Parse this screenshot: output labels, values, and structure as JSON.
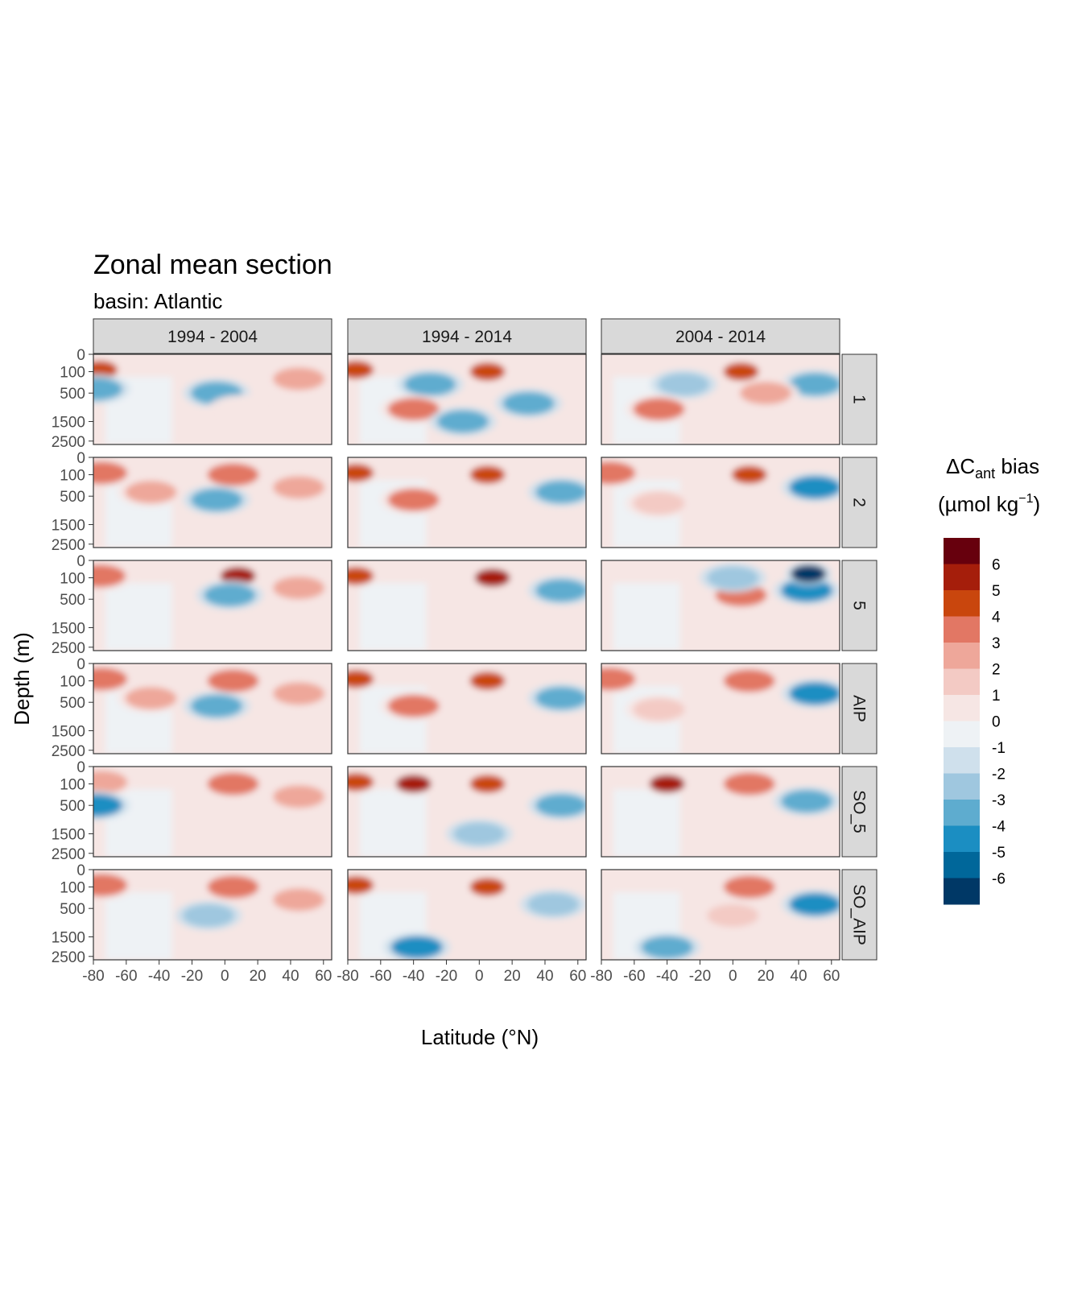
{
  "chart_data": {
    "type": "heatmap",
    "title": "Zonal mean section",
    "subtitle": "basin: Atlantic",
    "xlabel": "Latitude (°N)",
    "ylabel": "Depth (m)",
    "xlim": [
      -80,
      65
    ],
    "x_ticks": [
      "-80",
      "-60",
      "-40",
      "-20",
      "0",
      "20",
      "40",
      "60"
    ],
    "x_tick_values": [
      -80,
      -60,
      -40,
      -20,
      0,
      20,
      40,
      60
    ],
    "y_ticks": [
      "0",
      "100",
      "500",
      "1500",
      "2500"
    ],
    "y_tick_values": [
      0,
      100,
      500,
      1500,
      2500
    ],
    "y_reversed": true,
    "columns": [
      "1994 - 2004",
      "1994 - 2014",
      "2004 - 2014"
    ],
    "rows": [
      "1",
      "2",
      "5",
      "AIP",
      "SO_5",
      "SO_AIP"
    ],
    "legend": {
      "title_prefix": "ΔC",
      "title_sub": "ant",
      "title_suffix": " bias",
      "unit_prefix": "(µmol kg",
      "unit_sup": "−1",
      "unit_suffix": ")",
      "labels": [
        "6",
        "5",
        "4",
        "3",
        "2",
        "1",
        "0",
        "-1",
        "-2",
        "-3",
        "-4",
        "-5",
        "-6"
      ],
      "colors": [
        "#67000d",
        "#a51e0b",
        "#c9460d",
        "#e27764",
        "#eea79a",
        "#f3cac4",
        "#f6e6e4",
        "#eef2f5",
        "#cfe0ec",
        "#9fc7df",
        "#5eaccf",
        "#1b8ec2",
        "#00679a",
        "#003866"
      ]
    },
    "panels": [
      {
        "column": "1994 - 2004",
        "row": "1",
        "features": [
          {
            "lat": -76,
            "depth": 80,
            "value": 5
          },
          {
            "lat": -5,
            "depth": 500,
            "value": -3
          },
          {
            "lat": 45,
            "depth": 200,
            "value": 3
          },
          {
            "lat": -78,
            "depth": 400,
            "value": -3
          },
          {
            "lat": 10,
            "depth": 1000,
            "value": 1
          }
        ]
      },
      {
        "column": "1994 - 2014",
        "row": "1",
        "features": [
          {
            "lat": -75,
            "depth": 80,
            "value": 5
          },
          {
            "lat": 5,
            "depth": 100,
            "value": 5
          },
          {
            "lat": -30,
            "depth": 300,
            "value": -3
          },
          {
            "lat": -40,
            "depth": 1000,
            "value": 4
          },
          {
            "lat": 30,
            "depth": 800,
            "value": -3
          },
          {
            "lat": -10,
            "depth": 1500,
            "value": -3
          }
        ]
      },
      {
        "column": "2004 - 2014",
        "row": "1",
        "features": [
          {
            "lat": 5,
            "depth": 100,
            "value": 5
          },
          {
            "lat": -30,
            "depth": 300,
            "value": -2
          },
          {
            "lat": -45,
            "depth": 1000,
            "value": 4
          },
          {
            "lat": 50,
            "depth": 300,
            "value": -3
          },
          {
            "lat": 20,
            "depth": 500,
            "value": 3
          }
        ]
      },
      {
        "column": "1994 - 2004",
        "row": "2",
        "features": [
          {
            "lat": -75,
            "depth": 80,
            "value": 4
          },
          {
            "lat": 5,
            "depth": 100,
            "value": 4
          },
          {
            "lat": -45,
            "depth": 400,
            "value": 3
          },
          {
            "lat": -5,
            "depth": 600,
            "value": -3
          },
          {
            "lat": 45,
            "depth": 300,
            "value": 3
          }
        ]
      },
      {
        "column": "1994 - 2014",
        "row": "2",
        "features": [
          {
            "lat": -75,
            "depth": 80,
            "value": 5
          },
          {
            "lat": 5,
            "depth": 100,
            "value": 5
          },
          {
            "lat": -40,
            "depth": 600,
            "value": 4
          },
          {
            "lat": 50,
            "depth": 400,
            "value": -3
          }
        ]
      },
      {
        "column": "2004 - 2014",
        "row": "2",
        "features": [
          {
            "lat": -75,
            "depth": 80,
            "value": 4
          },
          {
            "lat": 10,
            "depth": 100,
            "value": 5
          },
          {
            "lat": 50,
            "depth": 300,
            "value": -4
          },
          {
            "lat": -45,
            "depth": 700,
            "value": 2
          }
        ]
      },
      {
        "column": "1994 - 2004",
        "row": "5",
        "features": [
          {
            "lat": -76,
            "depth": 80,
            "value": 4
          },
          {
            "lat": 8,
            "depth": 80,
            "value": 6
          },
          {
            "lat": 3,
            "depth": 400,
            "value": -3
          },
          {
            "lat": 45,
            "depth": 250,
            "value": 3
          }
        ]
      },
      {
        "column": "1994 - 2014",
        "row": "5",
        "features": [
          {
            "lat": -75,
            "depth": 80,
            "value": 5
          },
          {
            "lat": 8,
            "depth": 100,
            "value": 6
          },
          {
            "lat": 50,
            "depth": 300,
            "value": -3
          }
        ]
      },
      {
        "column": "2004 - 2014",
        "row": "5",
        "features": [
          {
            "lat": 45,
            "depth": 300,
            "value": -4
          },
          {
            "lat": 46,
            "depth": 60,
            "value": -6
          },
          {
            "lat": 5,
            "depth": 400,
            "value": 4
          },
          {
            "lat": 0,
            "depth": 100,
            "value": -2
          }
        ]
      },
      {
        "column": "1994 - 2004",
        "row": "AIP",
        "features": [
          {
            "lat": -75,
            "depth": 80,
            "value": 4
          },
          {
            "lat": 5,
            "depth": 100,
            "value": 4
          },
          {
            "lat": -45,
            "depth": 400,
            "value": 3
          },
          {
            "lat": -5,
            "depth": 600,
            "value": -3
          },
          {
            "lat": 45,
            "depth": 300,
            "value": 3
          }
        ]
      },
      {
        "column": "1994 - 2014",
        "row": "AIP",
        "features": [
          {
            "lat": -75,
            "depth": 80,
            "value": 5
          },
          {
            "lat": 5,
            "depth": 100,
            "value": 5
          },
          {
            "lat": -40,
            "depth": 600,
            "value": 4
          },
          {
            "lat": 50,
            "depth": 400,
            "value": -3
          }
        ]
      },
      {
        "column": "2004 - 2014",
        "row": "AIP",
        "features": [
          {
            "lat": -75,
            "depth": 80,
            "value": 4
          },
          {
            "lat": 10,
            "depth": 100,
            "value": 4
          },
          {
            "lat": 50,
            "depth": 300,
            "value": -4
          },
          {
            "lat": -45,
            "depth": 700,
            "value": 2
          }
        ]
      },
      {
        "column": "1994 - 2004",
        "row": "SO_5",
        "features": [
          {
            "lat": -75,
            "depth": 80,
            "value": 3
          },
          {
            "lat": 5,
            "depth": 100,
            "value": 4
          },
          {
            "lat": 45,
            "depth": 300,
            "value": 3
          },
          {
            "lat": -78,
            "depth": 500,
            "value": -4
          }
        ]
      },
      {
        "column": "1994 - 2014",
        "row": "SO_5",
        "features": [
          {
            "lat": -75,
            "depth": 80,
            "value": 5
          },
          {
            "lat": -40,
            "depth": 100,
            "value": 6
          },
          {
            "lat": 5,
            "depth": 100,
            "value": 5
          },
          {
            "lat": 50,
            "depth": 500,
            "value": -3
          },
          {
            "lat": 0,
            "depth": 1500,
            "value": -2
          }
        ]
      },
      {
        "column": "2004 - 2014",
        "row": "SO_5",
        "features": [
          {
            "lat": -40,
            "depth": 100,
            "value": 6
          },
          {
            "lat": 10,
            "depth": 100,
            "value": 4
          },
          {
            "lat": 45,
            "depth": 400,
            "value": -3
          }
        ]
      },
      {
        "column": "1994 - 2004",
        "row": "SO_AIP",
        "features": [
          {
            "lat": -75,
            "depth": 80,
            "value": 4
          },
          {
            "lat": 5,
            "depth": 100,
            "value": 4
          },
          {
            "lat": 45,
            "depth": 300,
            "value": 3
          },
          {
            "lat": -10,
            "depth": 700,
            "value": -2
          }
        ]
      },
      {
        "column": "1994 - 2014",
        "row": "SO_AIP",
        "features": [
          {
            "lat": -75,
            "depth": 80,
            "value": 5
          },
          {
            "lat": 5,
            "depth": 100,
            "value": 5
          },
          {
            "lat": -38,
            "depth": 2000,
            "value": -4
          },
          {
            "lat": 45,
            "depth": 400,
            "value": -2
          }
        ]
      },
      {
        "column": "2004 - 2014",
        "row": "SO_AIP",
        "features": [
          {
            "lat": 10,
            "depth": 100,
            "value": 4
          },
          {
            "lat": 50,
            "depth": 400,
            "value": -4
          },
          {
            "lat": -40,
            "depth": 2000,
            "value": -3
          },
          {
            "lat": 0,
            "depth": 700,
            "value": 2
          }
        ]
      }
    ]
  }
}
